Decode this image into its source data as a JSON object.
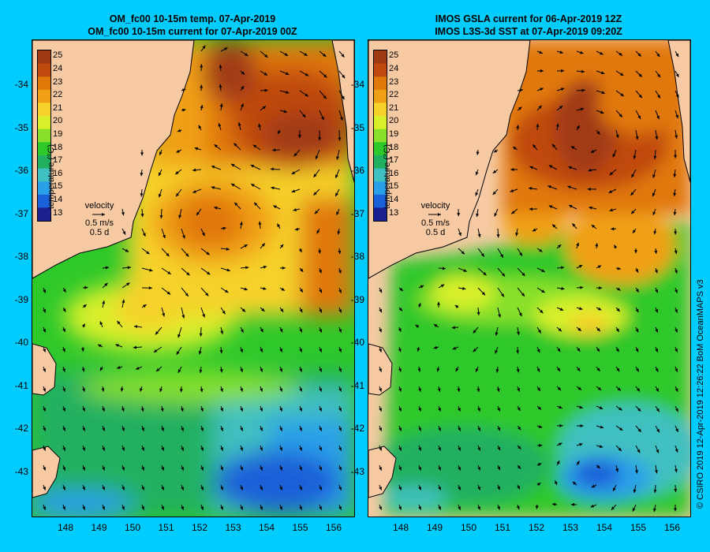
{
  "left_panel": {
    "title_line1": "OM_fc00 10-15m temp. 07-Apr-2019",
    "title_line2": "OM_fc00 10-15m current for 07-Apr-2019 00Z"
  },
  "right_panel": {
    "title_line1": "IMOS GSLA current for 06-Apr-2019 12Z",
    "title_line2": "IMOS L3S-3d SST at 07-Apr-2019 09:20Z"
  },
  "colorbar": {
    "title": "temperature (°C)",
    "labels": [
      "25",
      "24",
      "23",
      "22",
      "21",
      "20",
      "19",
      "18",
      "17",
      "16",
      "15",
      "14",
      "13"
    ],
    "colors": [
      "#a03a14",
      "#c04a0e",
      "#e0780a",
      "#f0a016",
      "#f6d22a",
      "#d8f02a",
      "#88e02a",
      "#2ec82a",
      "#22b060",
      "#40c0c0",
      "#2aa0e8",
      "#1a60d8",
      "#1a2090"
    ]
  },
  "velocity_legend": {
    "label": "velocity",
    "speed": "0.5 m/s",
    "time": "0.5 d"
  },
  "axes": {
    "lat_labels": [
      "-34",
      "-35",
      "-36",
      "-37",
      "-38",
      "-39",
      "-40",
      "-41",
      "-42",
      "-43"
    ],
    "lon_labels": [
      "148",
      "149",
      "150",
      "151",
      "152",
      "153",
      "154",
      "155",
      "156"
    ]
  },
  "credit": "© CSIRO 2019   12-Apr-2019 12:26:22 BoM OceanMAPS v3",
  "colors": {
    "background": "#00ccff",
    "land": "#f7caa4"
  }
}
